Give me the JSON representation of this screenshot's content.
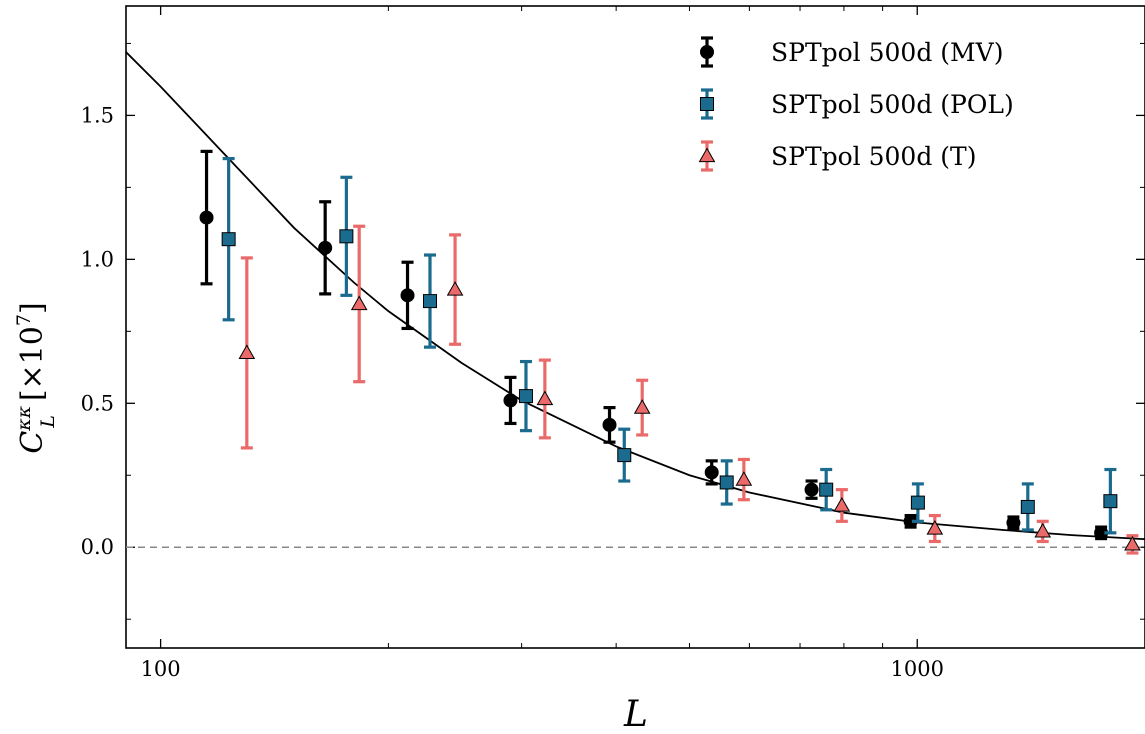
{
  "chart_data": {
    "type": "scatter",
    "xscale": "log",
    "xlim": [
      90,
      2000
    ],
    "ylim": [
      -0.35,
      1.88
    ],
    "xticks": [
      100,
      1000
    ],
    "xtick_labels": [
      "100",
      "1000"
    ],
    "yticks": [
      0.0,
      0.5,
      1.0,
      1.5
    ],
    "ytick_labels": [
      "0.0",
      "0.5",
      "1.0",
      "1.5"
    ],
    "xlabel": "L",
    "ylabel_main": "C",
    "ylabel_sup": "κκ",
    "ylabel_sub": "L",
    "ylabel_unit_open": "[×10",
    "ylabel_unit_exp": "7",
    "ylabel_unit_close": "]",
    "grid": false,
    "legend_position": "top-right",
    "reference_line": {
      "y": 0.0,
      "style": "dashed",
      "color": "#888888"
    },
    "theory_curve": {
      "color": "#000000",
      "x": [
        90,
        100,
        120,
        150,
        180,
        200,
        250,
        300,
        400,
        500,
        600,
        800,
        1000,
        1300,
        1600,
        2000
      ],
      "y": [
        1.72,
        1.6,
        1.38,
        1.11,
        0.92,
        0.82,
        0.64,
        0.51,
        0.35,
        0.25,
        0.19,
        0.12,
        0.086,
        0.06,
        0.042,
        0.028
      ]
    },
    "series": [
      {
        "name": "SPTpol 500d (MV)",
        "marker": "circle",
        "color": "#000000",
        "x": [
          115,
          165,
          212,
          290,
          392,
          535,
          725,
          980,
          1340,
          1750
        ],
        "y": [
          1.145,
          1.04,
          0.875,
          0.51,
          0.425,
          0.26,
          0.2,
          0.09,
          0.085,
          0.05
        ],
        "yerr": [
          0.23,
          0.16,
          0.115,
          0.08,
          0.06,
          0.04,
          0.03,
          0.02,
          0.02,
          0.02
        ]
      },
      {
        "name": "SPTpol 500d (POL)",
        "marker": "square",
        "color": "#1b6b8e",
        "x": [
          123,
          176,
          227,
          304,
          410,
          560,
          758,
          1002,
          1400,
          1800
        ],
        "y": [
          1.07,
          1.08,
          0.855,
          0.525,
          0.32,
          0.225,
          0.2,
          0.155,
          0.14,
          0.16
        ],
        "yerr": [
          0.28,
          0.205,
          0.16,
          0.12,
          0.09,
          0.075,
          0.07,
          0.065,
          0.08,
          0.11
        ]
      },
      {
        "name": "SPTpol 500d (T)",
        "marker": "triangle",
        "color": "#ea6a6a",
        "x": [
          130,
          183,
          245,
          322,
          433,
          590,
          795,
          1055,
          1465,
          1925
        ],
        "y": [
          0.675,
          0.845,
          0.895,
          0.515,
          0.485,
          0.235,
          0.145,
          0.065,
          0.055,
          0.01
        ],
        "yerr": [
          0.33,
          0.27,
          0.19,
          0.135,
          0.095,
          0.07,
          0.055,
          0.045,
          0.035,
          0.03
        ]
      }
    ]
  }
}
